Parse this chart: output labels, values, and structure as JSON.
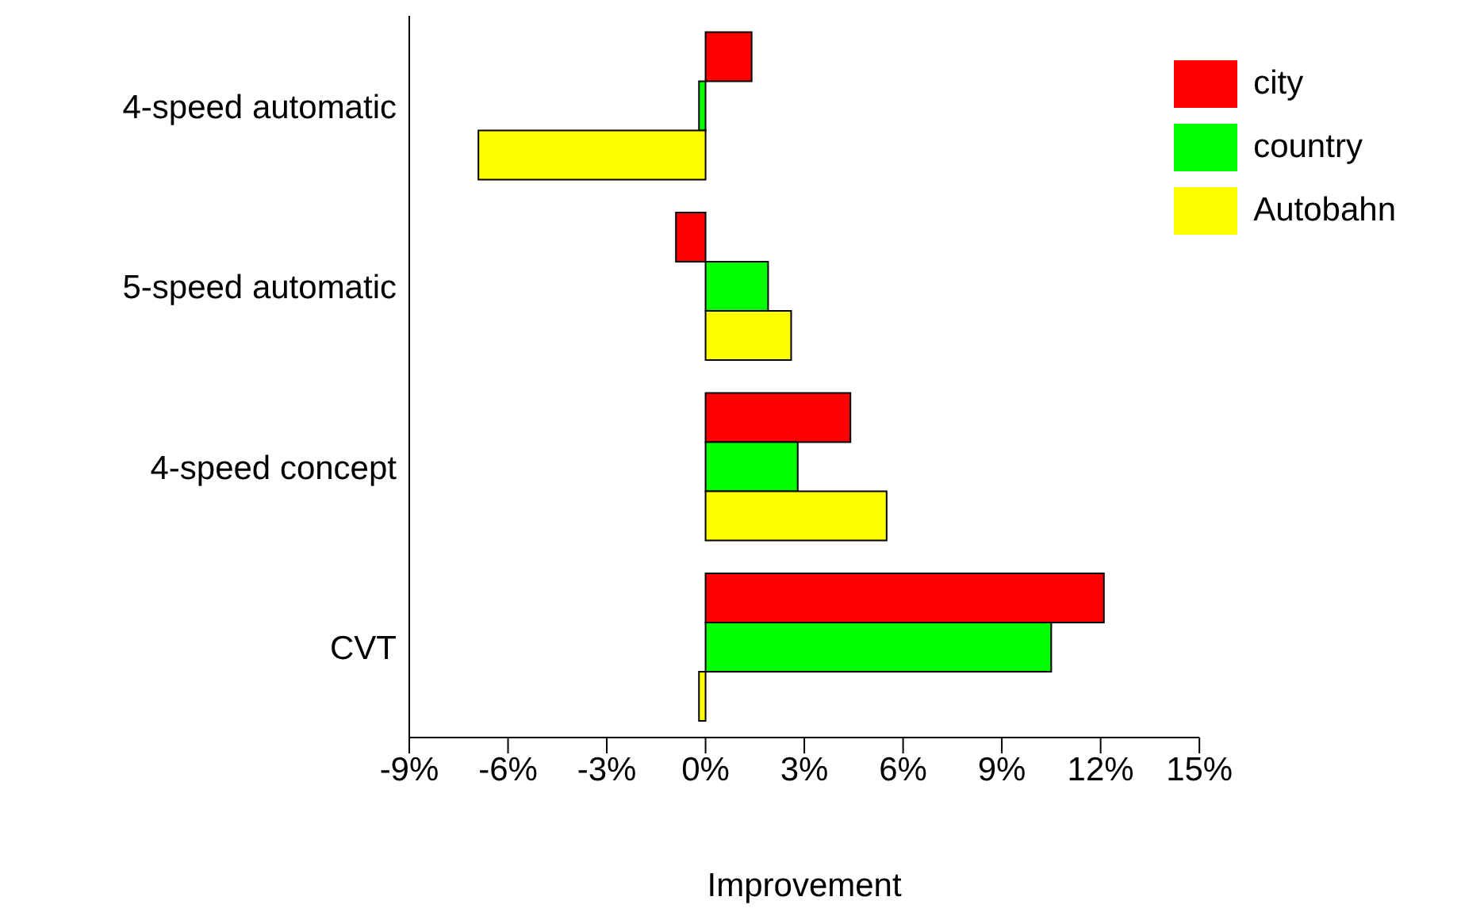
{
  "chart_data": {
    "type": "bar",
    "orientation": "horizontal",
    "xlabel": "Improvement",
    "categories": [
      "4-speed automatic",
      "5-speed automatic",
      "4-speed concept",
      "CVT"
    ],
    "series": [
      {
        "name": "city",
        "color": "#ff0000",
        "values": [
          1.4,
          -0.9,
          4.4,
          12.1
        ]
      },
      {
        "name": "country",
        "color": "#00ff00",
        "values": [
          -0.2,
          1.9,
          2.8,
          10.5
        ]
      },
      {
        "name": "Autobahn",
        "color": "#ffff00",
        "values": [
          -6.9,
          2.6,
          5.5,
          -0.2
        ]
      }
    ],
    "xlim": [
      -9,
      15
    ],
    "xticks": [
      {
        "value": -9,
        "label": "-9%"
      },
      {
        "value": -6,
        "label": "-6%"
      },
      {
        "value": -3,
        "label": "-3%"
      },
      {
        "value": 0,
        "label": "0%"
      },
      {
        "value": 3,
        "label": "3%"
      },
      {
        "value": 6,
        "label": "6%"
      },
      {
        "value": 9,
        "label": "9%"
      },
      {
        "value": 12,
        "label": "12%"
      },
      {
        "value": 15,
        "label": "15%"
      }
    ],
    "grid": false,
    "legend": "top right"
  }
}
